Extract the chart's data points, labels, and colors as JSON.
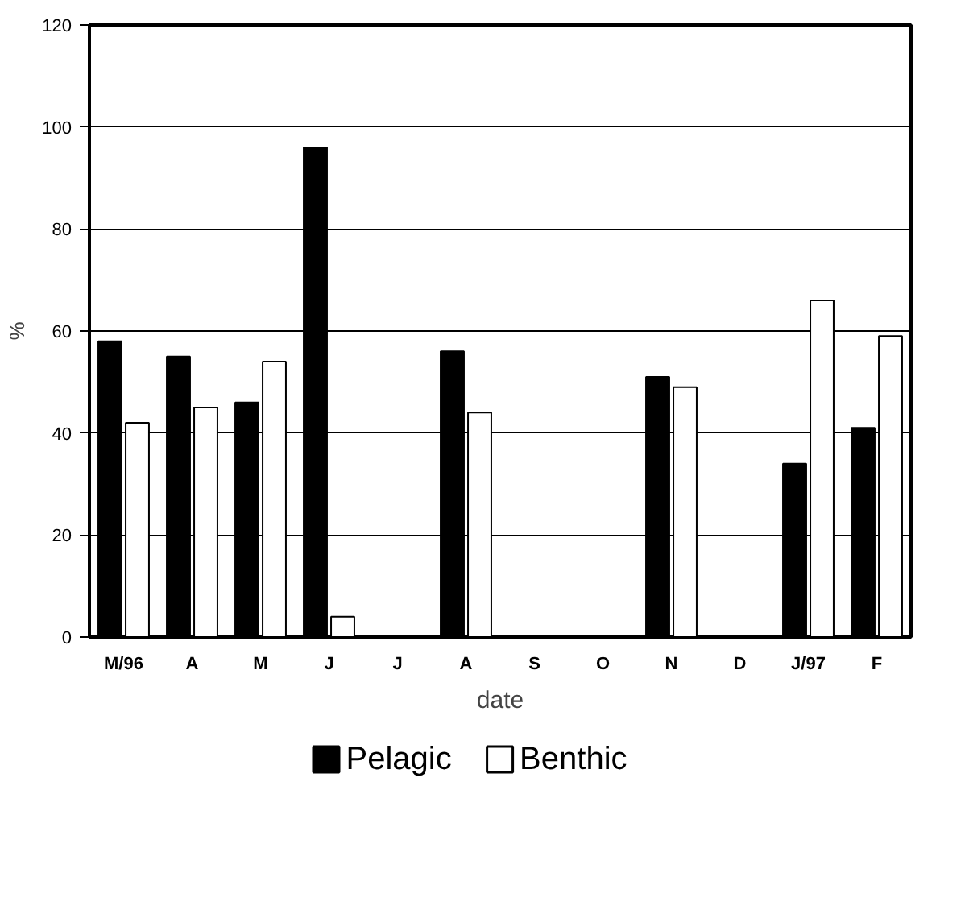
{
  "chart_data": {
    "type": "bar",
    "xlabel": "date",
    "ylabel": "%",
    "categories": [
      "M/96",
      "A",
      "M",
      "J",
      "J",
      "A",
      "S",
      "O",
      "N",
      "D",
      "J/97",
      "F"
    ],
    "series": [
      {
        "name": "Pelagic",
        "color": "#000000",
        "values": [
          58,
          55,
          46,
          96,
          null,
          56,
          null,
          null,
          51,
          null,
          34,
          41
        ]
      },
      {
        "name": "Benthic",
        "color": "#ffffff",
        "values": [
          42,
          45,
          54,
          4,
          null,
          44,
          null,
          null,
          49,
          null,
          66,
          59
        ]
      }
    ],
    "ylim": [
      0,
      120
    ],
    "yticks": [
      0,
      20,
      40,
      60,
      80,
      100,
      120
    ],
    "grid": "y",
    "legend": "bottom"
  }
}
